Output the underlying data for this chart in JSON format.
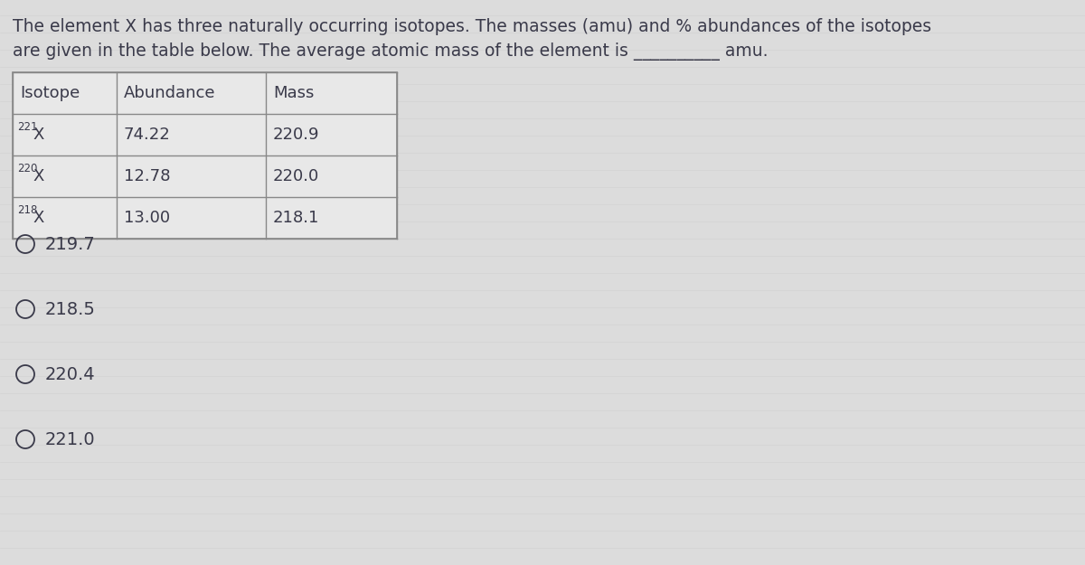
{
  "title_line1": "The element X has three naturally occurring isotopes. The masses (amu) and % abundances of the isotopes",
  "title_line2": "are given in the table below. The average atomic mass of the element is __________ amu.",
  "table_headers": [
    "Isotope",
    "Abundance",
    "Mass"
  ],
  "table_rows": [
    {
      "isotope_num": "221",
      "isotope_letter": "X",
      "abundance": "74.22",
      "mass": "220.9"
    },
    {
      "isotope_num": "220",
      "isotope_letter": "X",
      "abundance": "12.78",
      "mass": "220.0"
    },
    {
      "isotope_num": "218",
      "isotope_letter": "X",
      "abundance": "13.00",
      "mass": "218.1"
    }
  ],
  "choices": [
    "219.7",
    "218.5",
    "220.4",
    "221.0"
  ],
  "bg_color": "#dcdcdc",
  "table_bg": "#e8e8e8",
  "table_border_color": "#888888",
  "text_color": "#3a3a4a",
  "title_fontsize": 13.5,
  "table_header_fontsize": 13,
  "table_cell_fontsize": 13,
  "choice_fontsize": 14
}
